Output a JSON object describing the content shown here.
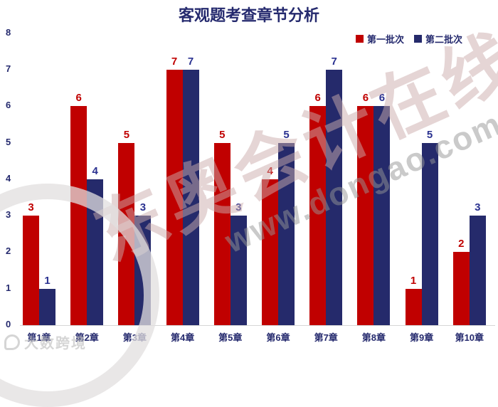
{
  "title": "客观题考查章节分析",
  "legend": {
    "items": [
      {
        "label": "第一批次",
        "color": "#C00000"
      },
      {
        "label": "第二批次",
        "color": "#252A6B"
      }
    ]
  },
  "chart_data": {
    "type": "bar",
    "title": "客观题考查章节分析",
    "categories": [
      "第1章",
      "第2章",
      "第3章",
      "第4章",
      "第5章",
      "第6章",
      "第7章",
      "第8章",
      "第9章",
      "第10章"
    ],
    "series": [
      {
        "name": "第一批次",
        "color": "#C00000",
        "label_color": "#C00000",
        "values": [
          3,
          6,
          5,
          7,
          5,
          4,
          6,
          6,
          1,
          2
        ]
      },
      {
        "name": "第二批次",
        "color": "#252A6B",
        "label_color": "#2A3190",
        "values": [
          1,
          4,
          3,
          7,
          3,
          5,
          7,
          6,
          5,
          3
        ]
      }
    ],
    "xlabel": "",
    "ylabel": "",
    "ylim": [
      0,
      8
    ],
    "yticks": [
      0,
      1,
      2,
      3,
      4,
      5,
      6,
      7,
      8
    ],
    "grid": false,
    "legend_position": "top-right",
    "bar_value_labels": true
  },
  "watermarks": {
    "diagonal_text": "东奥会计在线",
    "diagonal_url": "www.dongao.com",
    "corner_logo_text": "大数跨境"
  },
  "colors": {
    "series_red": "#C00000",
    "series_navy": "#252A6B",
    "title_navy": "#252A6E",
    "axis_line": "#D6D6D6",
    "value_label_blue": "#2A3190"
  }
}
